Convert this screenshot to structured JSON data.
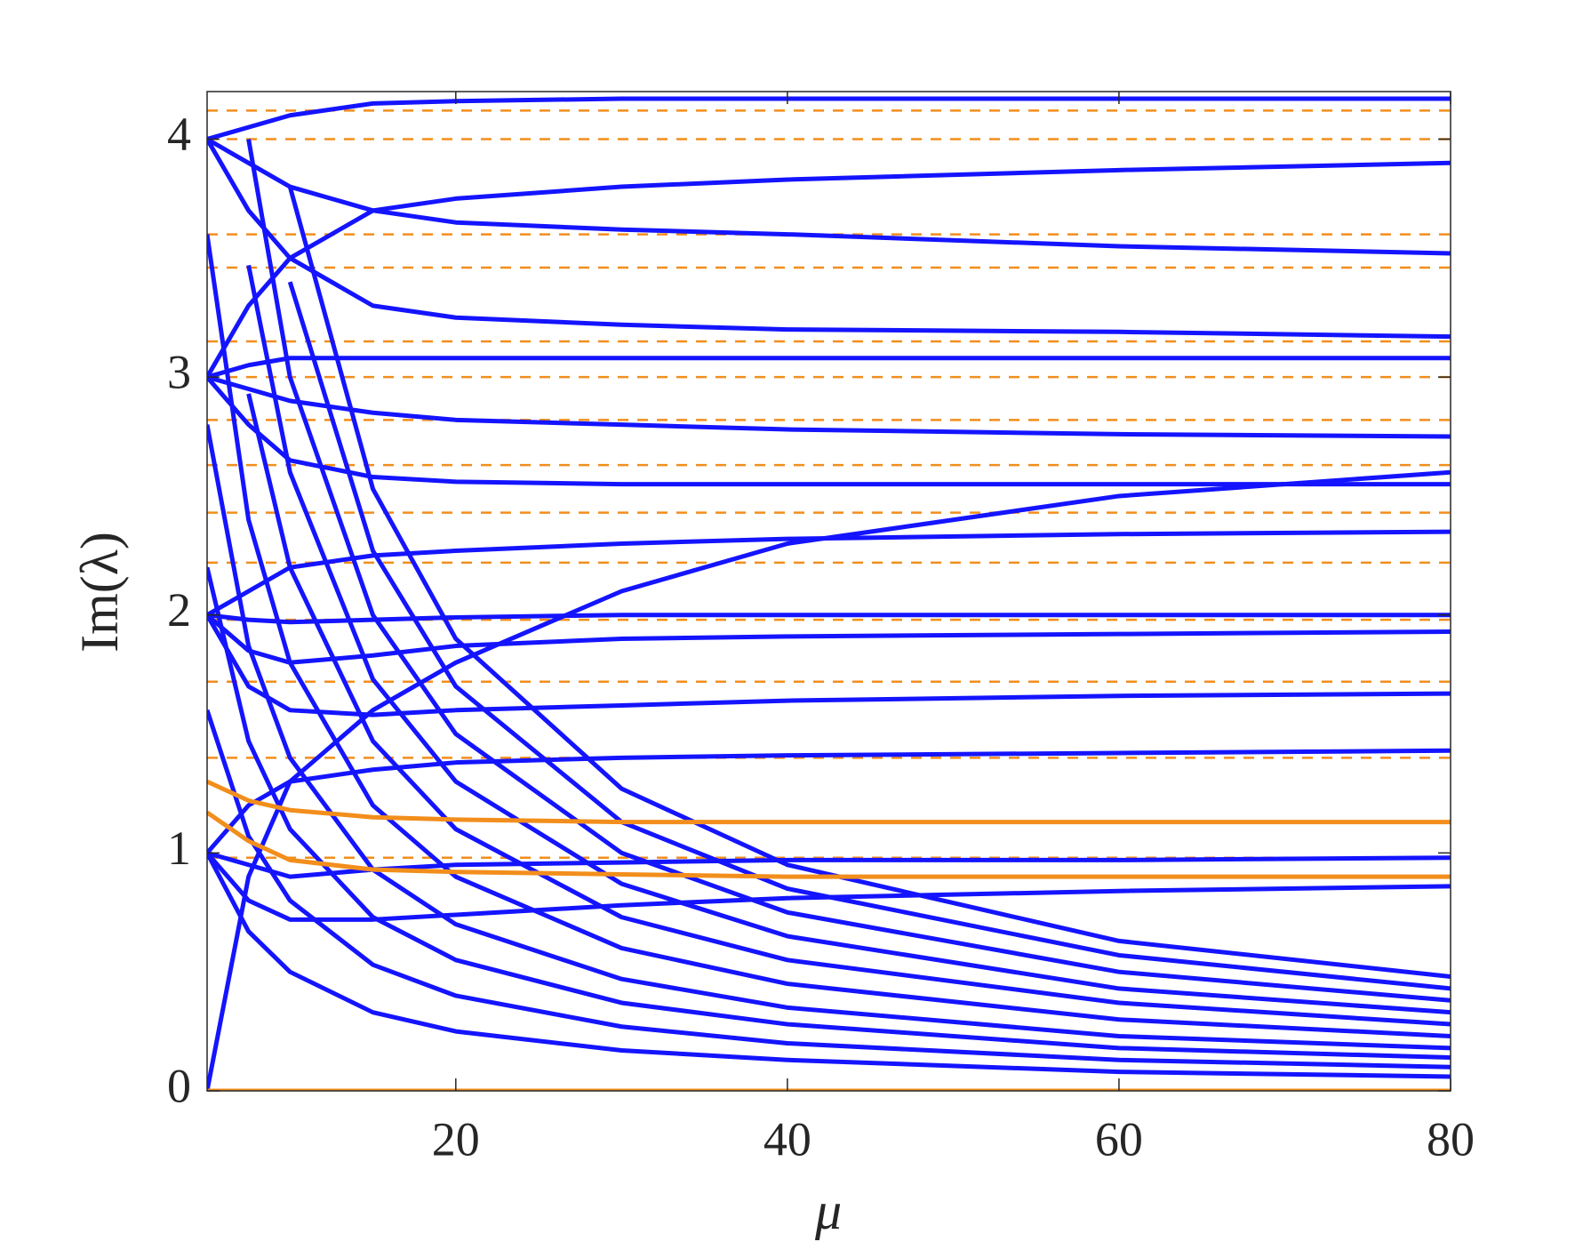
{
  "chart_data": {
    "type": "line",
    "xlabel": "μ",
    "ylabel": "Im(λ)",
    "xlim": [
      5,
      80
    ],
    "ylim": [
      0,
      4.2
    ],
    "xticks": [
      20,
      40,
      60,
      80
    ],
    "yticks": [
      0,
      1,
      2,
      3,
      4
    ],
    "x": [
      5,
      7.5,
      10,
      15,
      20,
      30,
      40,
      60,
      80
    ],
    "series": [
      {
        "color": "#1414ff",
        "values": [
          null,
          null,
          3.8,
          2.53,
          1.9,
          1.27,
          0.95,
          0.63,
          0.48
        ]
      },
      {
        "color": "#1414ff",
        "values": [
          null,
          null,
          3.4,
          2.27,
          1.7,
          1.13,
          0.85,
          0.57,
          0.43
        ]
      },
      {
        "color": "#1414ff",
        "values": [
          null,
          4.0,
          3.0,
          2.0,
          1.5,
          1.0,
          0.75,
          0.5,
          0.38
        ]
      },
      {
        "color": "#1414ff",
        "values": [
          null,
          3.47,
          2.6,
          1.73,
          1.3,
          0.87,
          0.65,
          0.43,
          0.33
        ]
      },
      {
        "color": "#1414ff",
        "values": [
          null,
          2.93,
          2.2,
          1.47,
          1.1,
          0.73,
          0.55,
          0.37,
          0.28
        ]
      },
      {
        "color": "#1414ff",
        "values": [
          3.6,
          2.4,
          1.8,
          1.2,
          0.9,
          0.6,
          0.45,
          0.3,
          0.23
        ]
      },
      {
        "color": "#1414ff",
        "values": [
          2.8,
          1.87,
          1.4,
          0.93,
          0.7,
          0.47,
          0.35,
          0.23,
          0.18
        ]
      },
      {
        "color": "#1414ff",
        "values": [
          2.2,
          1.47,
          1.1,
          0.73,
          0.55,
          0.37,
          0.28,
          0.18,
          0.14
        ]
      },
      {
        "color": "#1414ff",
        "values": [
          1.6,
          1.07,
          0.8,
          0.53,
          0.4,
          0.27,
          0.2,
          0.13,
          0.1
        ]
      },
      {
        "color": "#1414ff",
        "values": [
          1.0,
          0.67,
          0.5,
          0.33,
          0.25,
          0.17,
          0.13,
          0.08,
          0.06
        ]
      },
      {
        "color": "#1414ff",
        "values": [
          4.0,
          4.05,
          4.1,
          4.15,
          4.16,
          4.17,
          4.17,
          4.17,
          4.17
        ]
      },
      {
        "color": "#1414ff",
        "values": [
          4.0,
          3.9,
          3.8,
          3.7,
          3.65,
          3.62,
          3.6,
          3.55,
          3.52
        ]
      },
      {
        "color": "#1414ff",
        "values": [
          4.0,
          3.7,
          3.5,
          3.3,
          3.25,
          3.22,
          3.2,
          3.19,
          3.17
        ]
      },
      {
        "color": "#1414ff",
        "values": [
          3.0,
          3.3,
          3.5,
          3.7,
          3.75,
          3.8,
          3.83,
          3.87,
          3.9
        ]
      },
      {
        "color": "#1414ff",
        "values": [
          3.0,
          2.95,
          2.9,
          2.85,
          2.82,
          2.8,
          2.78,
          2.76,
          2.75
        ]
      },
      {
        "color": "#1414ff",
        "values": [
          3.0,
          3.05,
          3.08,
          3.08,
          3.08,
          3.08,
          3.08,
          3.08,
          3.08
        ]
      },
      {
        "color": "#1414ff",
        "values": [
          3.0,
          2.8,
          2.65,
          2.58,
          2.56,
          2.55,
          2.55,
          2.55,
          2.55
        ]
      },
      {
        "color": "#1414ff",
        "values": [
          2.0,
          2.1,
          2.2,
          2.25,
          2.27,
          2.3,
          2.32,
          2.34,
          2.35
        ]
      },
      {
        "color": "#1414ff",
        "values": [
          2.0,
          1.98,
          1.97,
          1.98,
          1.99,
          2.0,
          2.0,
          2.0,
          2.0
        ]
      },
      {
        "color": "#1414ff",
        "values": [
          2.0,
          1.85,
          1.8,
          1.83,
          1.87,
          1.9,
          1.91,
          1.92,
          1.93
        ]
      },
      {
        "color": "#1414ff",
        "values": [
          2.0,
          1.7,
          1.6,
          1.58,
          1.6,
          1.62,
          1.64,
          1.66,
          1.67
        ]
      },
      {
        "color": "#1414ff",
        "values": [
          1.0,
          1.2,
          1.3,
          1.35,
          1.38,
          1.4,
          1.41,
          1.42,
          1.43
        ]
      },
      {
        "color": "#1414ff",
        "values": [
          1.0,
          0.95,
          0.9,
          0.93,
          0.95,
          0.96,
          0.97,
          0.97,
          0.98
        ]
      },
      {
        "color": "#1414ff",
        "values": [
          1.0,
          0.8,
          0.72,
          0.72,
          0.74,
          0.78,
          0.81,
          0.84,
          0.86
        ]
      },
      {
        "color": "#1414ff",
        "values": [
          0,
          0.9,
          1.3,
          1.6,
          1.8,
          2.1,
          2.3,
          2.5,
          2.6
        ]
      },
      {
        "color": "#f28e1c",
        "values": [
          1.3,
          1.22,
          1.18,
          1.15,
          1.14,
          1.13,
          1.13,
          1.13,
          1.13
        ]
      },
      {
        "color": "#f28e1c",
        "values": [
          1.17,
          1.05,
          0.97,
          0.93,
          0.92,
          0.91,
          0.9,
          0.9,
          0.9
        ]
      },
      {
        "color": "#f28e1c",
        "values": [
          0,
          0,
          0,
          0,
          0,
          0,
          0,
          0,
          0
        ]
      }
    ],
    "reference_lines": {
      "color": "#f28e1c",
      "dashed": true,
      "values": [
        0.98,
        1.4,
        1.72,
        1.98,
        2.22,
        2.43,
        2.63,
        2.82,
        3.0,
        3.15,
        3.46,
        3.6,
        4.0,
        4.12
      ]
    }
  }
}
